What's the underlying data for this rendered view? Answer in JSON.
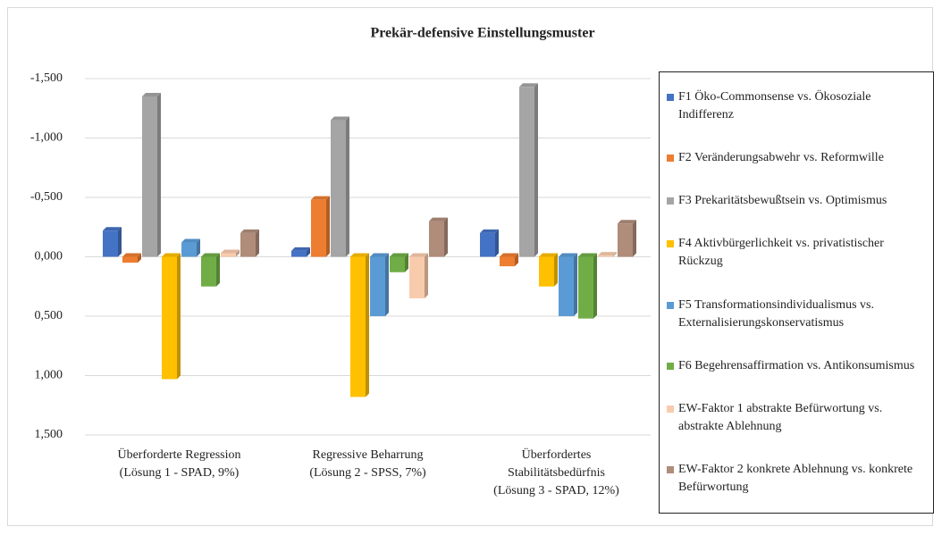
{
  "chart_data": {
    "type": "bar",
    "title": "Prekär-defensive Einstellungsmuster",
    "categories": [
      "Überforderte Regression\n(Lösung 1 - SPAD, 9%)",
      "Regressive Beharrung\n(Lösung 2 - SPSS, 7%)",
      "Überfordertes\nStabilitätsbedürfnis\n(Lösung 3 - SPAD, 12%)"
    ],
    "series": [
      {
        "name": "F1 Öko-Commonsense vs. Ökosoziale Indifferenz",
        "color": "#4472c4",
        "values": [
          -0.22,
          -0.05,
          -0.2
        ]
      },
      {
        "name": "F2 Veränderungsabwehr vs. Reformwille",
        "color": "#ed7d31",
        "values": [
          0.05,
          -0.48,
          0.08
        ]
      },
      {
        "name": "F3 Prekaritätsbewußtsein vs. Optimismus",
        "color": "#a5a5a5",
        "values": [
          -1.35,
          -1.15,
          -1.43
        ]
      },
      {
        "name": "F4 Aktivbürgerlichkeit vs. privatistischer Rückzug",
        "color": "#ffc000",
        "values": [
          1.03,
          1.18,
          0.25
        ]
      },
      {
        "name": "F5 Transformationsindividualismus vs. Externalisierungskonservatismus",
        "color": "#5b9bd5",
        "values": [
          -0.12,
          0.5,
          0.5
        ]
      },
      {
        "name": "F6 Begehrensaffirmation vs. Antikonsumismus",
        "color": "#70ad47",
        "values": [
          0.25,
          0.13,
          0.52
        ]
      },
      {
        "name": "EW-Faktor 1 abstrakte Befürwortung vs. abstrakte Ablehnung",
        "color": "#f8cbad",
        "values": [
          -0.03,
          0.35,
          -0.01
        ]
      },
      {
        "name": "EW-Faktor 2 konkrete Ablehnung vs. konkrete Befürwortung",
        "color": "#b08c7a",
        "values": [
          -0.2,
          -0.3,
          -0.28
        ]
      }
    ],
    "ylim": [
      -1.5,
      1.5
    ],
    "y_reversed": true,
    "yticks": [
      {
        "value": -1.5,
        "label": "-1,500"
      },
      {
        "value": -1.0,
        "label": "-1,000"
      },
      {
        "value": -0.5,
        "label": "-0,500"
      },
      {
        "value": 0,
        "label": "0,000"
      },
      {
        "value": 0.5,
        "label": "0,500"
      },
      {
        "value": 1.0,
        "label": "1,000"
      },
      {
        "value": 1.5,
        "label": "1,500"
      }
    ],
    "grid": true,
    "legend": "right"
  }
}
